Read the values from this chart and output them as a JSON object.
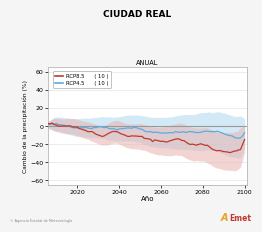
{
  "title": "CIUDAD REAL",
  "subtitle": "ANUAL",
  "xlabel": "Año",
  "ylabel": "Cambio de la precipitación (%)",
  "xlim": [
    2006,
    2101
  ],
  "ylim": [
    -65,
    65
  ],
  "yticks": [
    -60,
    -40,
    -20,
    0,
    20,
    40,
    60
  ],
  "xticks": [
    2020,
    2040,
    2060,
    2080,
    2100
  ],
  "rcp85_color": "#c0392b",
  "rcp45_color": "#5aade0",
  "rcp85_fill": "#e8b4b0",
  "rcp45_fill": "#b0d8ee",
  "zero_line_color": "#999999",
  "bg_color": "#f5f5f5",
  "plot_bg": "#ffffff",
  "legend_rcp85": "RCP8.5",
  "legend_rcp45": "RCP4.5",
  "legend_n85": "( 10 )",
  "legend_n45": "( 10 )",
  "seed": 12
}
